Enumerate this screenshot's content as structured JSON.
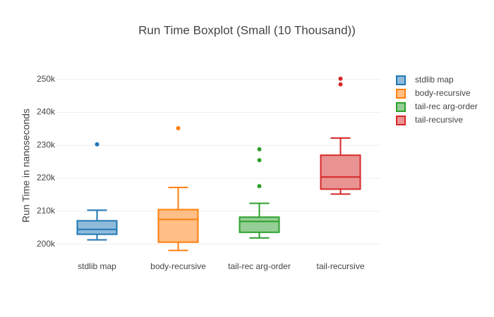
{
  "chart_data": {
    "type": "box",
    "title": "Run Time Boxplot (Small (10 Thousand))",
    "y_label": "Run Time in nanoseconds",
    "ylim": [
      195000,
      257000
    ],
    "yticks": [
      {
        "value": 200000,
        "label": "200k"
      },
      {
        "value": 210000,
        "label": "210k"
      },
      {
        "value": 220000,
        "label": "220k"
      },
      {
        "value": 230000,
        "label": "230k"
      },
      {
        "value": 240000,
        "label": "240k"
      },
      {
        "value": 250000,
        "label": "250k"
      }
    ],
    "grid": true,
    "legend": "right",
    "series": [
      {
        "name": "stdlib map",
        "color": "#1f77b4",
        "low": 201300,
        "q1": 203000,
        "median": 204500,
        "q3": 207100,
        "high": 210300,
        "outliers": [
          230300
        ]
      },
      {
        "name": "body-recursive",
        "color": "#ff7f0e",
        "low": 198100,
        "q1": 200600,
        "median": 207500,
        "q3": 210500,
        "high": 217200,
        "outliers": [
          235200
        ]
      },
      {
        "name": "tail-rec arg-order",
        "color": "#2ca02c",
        "low": 201900,
        "q1": 203600,
        "median": 206900,
        "q3": 208200,
        "high": 212400,
        "outliers": [
          217600,
          225500,
          228800
        ]
      },
      {
        "name": "tail-recursive",
        "color": "#d62728",
        "low": 215200,
        "q1": 216700,
        "median": 220400,
        "q3": 227000,
        "high": 232200,
        "outliers": [
          248500,
          250200
        ]
      }
    ]
  }
}
